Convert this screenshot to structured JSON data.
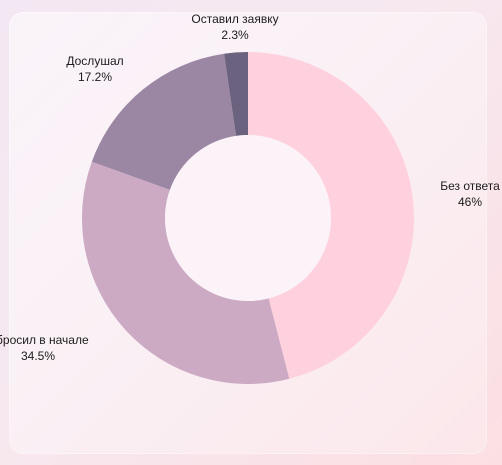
{
  "chart_data": {
    "type": "pie",
    "style": "donut",
    "title": "",
    "slices": [
      {
        "label": "Без ответа",
        "value": 46,
        "value_label": "46%",
        "color": "#ffd1df"
      },
      {
        "label": "Сбросил в начале",
        "value": 34.5,
        "value_label": "34.5%",
        "color": "#cdaac4"
      },
      {
        "label": "Дослушал",
        "value": 17.2,
        "value_label": "17.2%",
        "color": "#9b86a3"
      },
      {
        "label": "Оставил заявку",
        "value": 2.3,
        "value_label": "2.3%",
        "color": "#6a627e"
      }
    ],
    "start_angle_deg": 0,
    "direction": "clockwise",
    "legend": "none"
  }
}
